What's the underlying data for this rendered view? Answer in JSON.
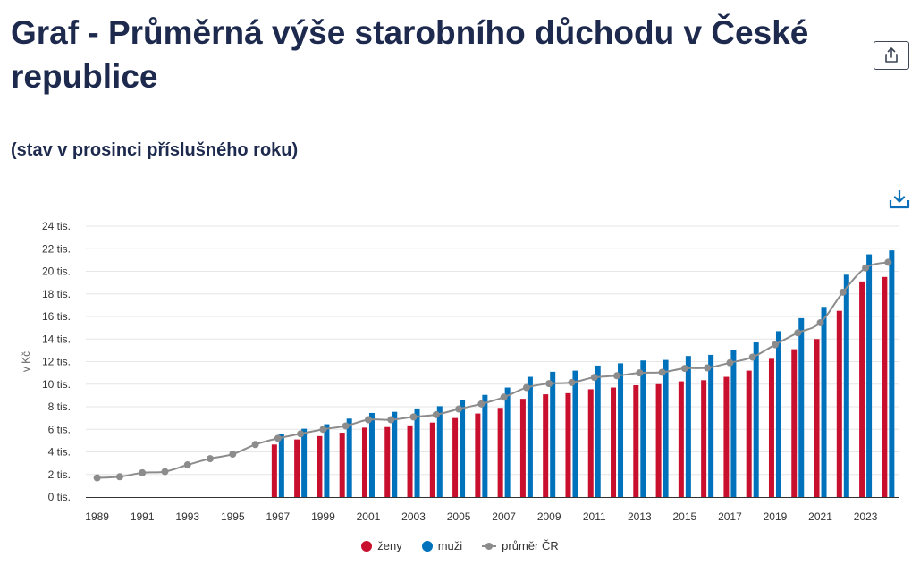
{
  "header": {
    "title": "Graf - Průměrná výše starobního důchodu v České republice",
    "subtitle": "(stav v prosinci příslušného roku)",
    "share_icon": "share-icon",
    "download_icon": "download-icon"
  },
  "chart_data": {
    "type": "bar",
    "title": "Graf - Průměrná výše starobního důchodu v České republice",
    "subtitle": "(stav v prosinci příslušného roku)",
    "ylabel": "v Kč",
    "xlabel": "",
    "ylim": [
      0,
      24000
    ],
    "yticks": [
      "0 tis.",
      "2 tis.",
      "4 tis.",
      "6 tis.",
      "8 tis.",
      "10 tis.",
      "12 tis.",
      "14 tis.",
      "16 tis.",
      "18 tis.",
      "20 tis.",
      "22 tis.",
      "24 tis."
    ],
    "xticks": [
      "1989",
      "1991",
      "1993",
      "1995",
      "1997",
      "1999",
      "2001",
      "2003",
      "2005",
      "2007",
      "2009",
      "2011",
      "2013",
      "2015",
      "2017",
      "2019",
      "2021",
      "2023"
    ],
    "grid": true,
    "legend_position": "bottom-center",
    "categories": [
      1989,
      1990,
      1991,
      1992,
      1993,
      1994,
      1995,
      1996,
      1997,
      1998,
      1999,
      2000,
      2001,
      2002,
      2003,
      2004,
      2005,
      2006,
      2007,
      2008,
      2009,
      2010,
      2011,
      2012,
      2013,
      2014,
      2015,
      2016,
      2017,
      2018,
      2019,
      2020,
      2021,
      2022,
      2023,
      2024
    ],
    "series": [
      {
        "name": "ženy",
        "type": "bar",
        "color": "#c8102e",
        "values": [
          null,
          null,
          null,
          null,
          null,
          null,
          null,
          null,
          4650,
          5100,
          5400,
          5700,
          6150,
          6200,
          6350,
          6600,
          7000,
          7400,
          7900,
          8700,
          9100,
          9200,
          9550,
          9700,
          9900,
          10000,
          10250,
          10350,
          10650,
          11200,
          12250,
          13100,
          14000,
          16500,
          19100,
          19500
        ]
      },
      {
        "name": "muži",
        "type": "bar",
        "color": "#0072bc",
        "values": [
          null,
          null,
          null,
          null,
          null,
          null,
          null,
          null,
          5550,
          6050,
          6450,
          6950,
          7450,
          7550,
          7850,
          8050,
          8600,
          9050,
          9700,
          10650,
          11100,
          11200,
          11650,
          11850,
          12100,
          12150,
          12500,
          12600,
          13000,
          13700,
          14700,
          15850,
          16850,
          19700,
          21500,
          21850
        ]
      },
      {
        "name": "průměr ČR",
        "type": "line",
        "color": "#8c8c8c",
        "values": [
          1700,
          1800,
          2150,
          2250,
          2850,
          3400,
          3800,
          4650,
          5200,
          5600,
          6000,
          6300,
          6850,
          6850,
          7100,
          7300,
          7800,
          8250,
          8850,
          9700,
          10050,
          10150,
          10600,
          10750,
          11000,
          11050,
          11400,
          11450,
          11900,
          12400,
          13500,
          14550,
          15450,
          18150,
          20300,
          20800
        ]
      }
    ]
  }
}
